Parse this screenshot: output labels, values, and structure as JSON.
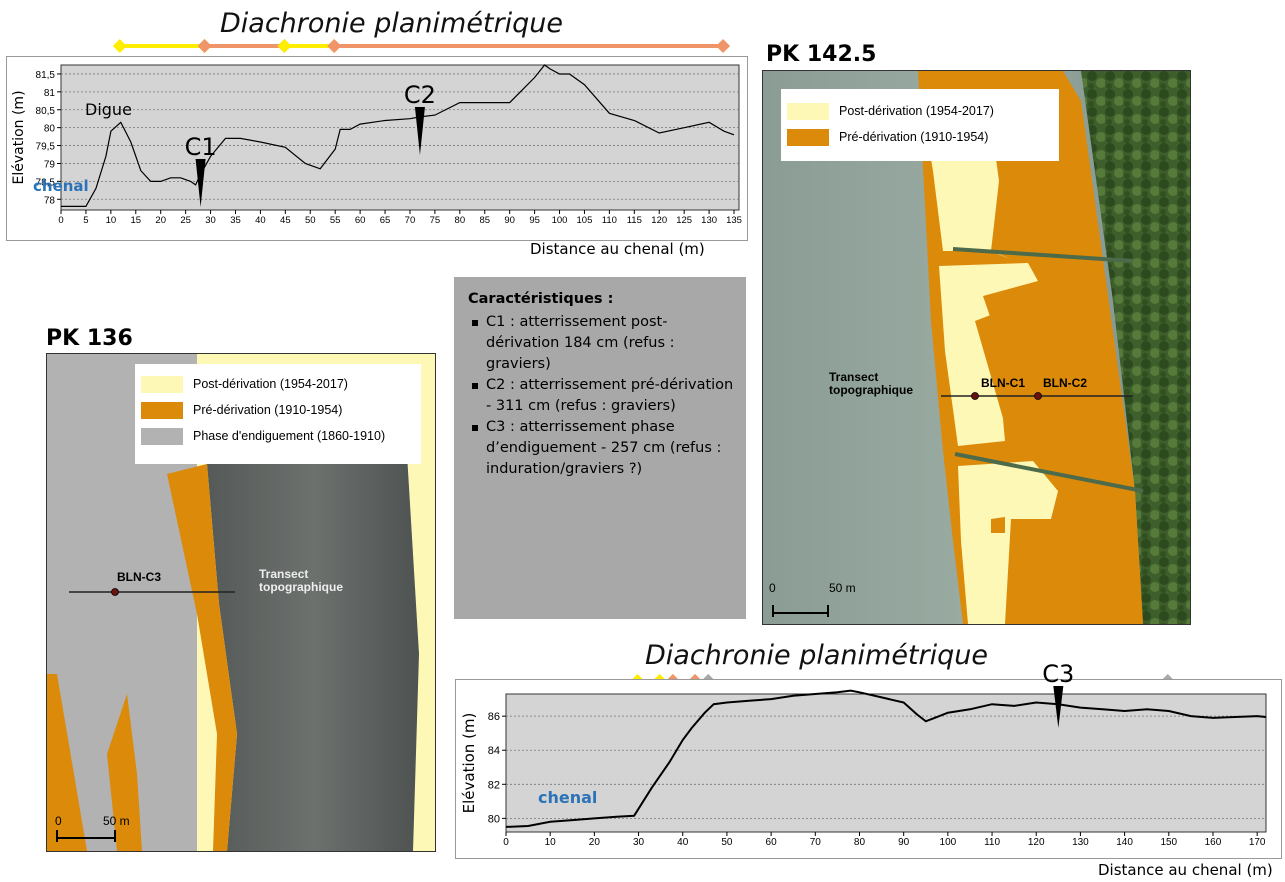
{
  "top_chart": {
    "title": "Diachronie planimétrique",
    "timeline": [
      {
        "from": 12,
        "to": 29,
        "color": "#ffee00"
      },
      {
        "from": 29,
        "to": 45,
        "color": "#f0956a"
      },
      {
        "from": 45,
        "to": 55,
        "color": "#ffee00"
      },
      {
        "from": 55,
        "to": 133,
        "color": "#f0956a"
      }
    ],
    "markers": [
      {
        "label": "C1",
        "x": 28
      },
      {
        "label": "C2",
        "x": 72
      }
    ],
    "annotations": {
      "digue": "Digue",
      "chenal": "chenal"
    },
    "xtitle": "Distance au chenal (m)",
    "ytitle": "Elévation (m)"
  },
  "bottom_chart": {
    "title": "Diachronie planimétrique",
    "timeline": [
      {
        "from": 30,
        "to": 35,
        "color": "#ffee00"
      },
      {
        "from": 35,
        "to": 38,
        "color": "#ffee00"
      },
      {
        "from": 38,
        "to": 43,
        "color": "#f0956a"
      },
      {
        "from": 43,
        "to": 46,
        "color": "#f0956a"
      },
      {
        "from": 46,
        "to": 150,
        "color": "#a9a9a9"
      }
    ],
    "markers": [
      {
        "label": "C3",
        "x": 125
      }
    ],
    "annotations": {
      "chenal": "chenal"
    },
    "xtitle": "Distance au chenal (m)",
    "ytitle": "Elévation (m)"
  },
  "chart_data": [
    {
      "type": "line",
      "xlim": [
        0,
        136
      ],
      "ylim": [
        77.7,
        81.75
      ],
      "xticks": [
        0,
        5,
        10,
        15,
        20,
        25,
        30,
        35,
        40,
        45,
        50,
        55,
        60,
        65,
        70,
        75,
        80,
        85,
        90,
        95,
        100,
        105,
        110,
        115,
        120,
        125,
        130,
        135
      ],
      "yticks": [
        {
          "v": 78,
          "label": "78"
        },
        {
          "v": 78.5,
          "label": "78,5"
        },
        {
          "v": 79,
          "label": "79"
        },
        {
          "v": 79.5,
          "label": "79,5"
        },
        {
          "v": 80,
          "label": "80"
        },
        {
          "v": 80.5,
          "label": "80,5"
        },
        {
          "v": 81,
          "label": "81"
        },
        {
          "v": 81.5,
          "label": "81,5"
        }
      ],
      "xlabel": "Distance au chenal (m)",
      "ylabel": "Elévation (m)",
      "grid": "horizontal dashed",
      "x": [
        0,
        5,
        7,
        9,
        10,
        12,
        14,
        16,
        18,
        20,
        22,
        24,
        26,
        27,
        28,
        30,
        33,
        36,
        40,
        45,
        49,
        52,
        55,
        56,
        58,
        60,
        65,
        70,
        72,
        75,
        80,
        85,
        90,
        95,
        97,
        98,
        100,
        102,
        105,
        110,
        115,
        120,
        125,
        130,
        133,
        135
      ],
      "y": [
        77.8,
        77.8,
        78.3,
        79.2,
        79.9,
        80.15,
        79.6,
        78.8,
        78.5,
        78.5,
        78.6,
        78.6,
        78.5,
        78.4,
        78.7,
        79.2,
        79.7,
        79.7,
        79.6,
        79.45,
        79.0,
        78.85,
        79.4,
        79.95,
        79.95,
        80.1,
        80.2,
        80.25,
        80.3,
        80.35,
        80.7,
        80.7,
        80.7,
        81.4,
        81.75,
        81.65,
        81.5,
        81.5,
        81.2,
        80.4,
        80.2,
        79.85,
        80.0,
        80.15,
        79.9,
        79.8
      ]
    },
    {
      "type": "line",
      "xlim": [
        0,
        172
      ],
      "ylim": [
        79.2,
        87.3
      ],
      "xticks": [
        0,
        10,
        20,
        30,
        40,
        50,
        60,
        70,
        80,
        90,
        100,
        110,
        120,
        130,
        140,
        150,
        160,
        170
      ],
      "yticks": [
        {
          "v": 80,
          "label": "80"
        },
        {
          "v": 82,
          "label": "82"
        },
        {
          "v": 84,
          "label": "84"
        },
        {
          "v": 86,
          "label": "86"
        }
      ],
      "xlabel": "Distance au chenal (m)",
      "ylabel": "Elévation (m)",
      "grid": "horizontal dashed",
      "x": [
        0,
        5,
        10,
        15,
        20,
        25,
        29,
        33,
        37,
        40,
        42,
        45,
        47,
        50,
        55,
        60,
        65,
        70,
        75,
        78,
        80,
        85,
        90,
        93,
        95,
        97,
        100,
        105,
        110,
        115,
        120,
        125,
        130,
        135,
        140,
        145,
        150,
        155,
        160,
        165,
        170,
        172
      ],
      "y": [
        79.5,
        79.55,
        79.8,
        79.9,
        80.0,
        80.1,
        80.15,
        81.8,
        83.3,
        84.6,
        85.3,
        86.2,
        86.7,
        86.8,
        86.9,
        87.0,
        87.2,
        87.3,
        87.4,
        87.5,
        87.4,
        87.1,
        86.8,
        86.1,
        85.7,
        85.9,
        86.2,
        86.4,
        86.7,
        86.6,
        86.8,
        86.7,
        86.5,
        86.4,
        86.3,
        86.4,
        86.3,
        86.0,
        85.9,
        85.95,
        86.0,
        85.95
      ]
    }
  ],
  "map_pk1425": {
    "title": "PK 142.5",
    "legend": [
      {
        "label": "Post-dérivation (1954-2017)",
        "color": "#fef8b6"
      },
      {
        "label": "Pré-dérivation (1910-1954)",
        "color": "#dc8a0a"
      }
    ],
    "transect_label": "Transect\ntopographique",
    "points": [
      {
        "label": "BLN-C1"
      },
      {
        "label": "BLN-C2"
      }
    ],
    "scale": {
      "zero": "0",
      "distance": "50 m"
    }
  },
  "map_pk136": {
    "title": "PK 136",
    "legend": [
      {
        "label": "Post-dérivation (1954-2017)",
        "color": "#fef8b6"
      },
      {
        "label": "Pré-dérivation (1910-1954)",
        "color": "#dc8a0a"
      },
      {
        "label": "Phase d'endiguement (1860-1910)",
        "color": "#b2b2b2"
      }
    ],
    "transect_label": "Transect\ntopographique",
    "points": [
      {
        "label": "BLN-C3"
      }
    ],
    "scale": {
      "zero": "0",
      "distance": "50 m"
    }
  },
  "characteristics": {
    "title": "Caractéristiques :",
    "items": [
      "C1 : atterrissement post-dérivation    184 cm (refus : graviers)",
      "C2 : atterrissement  pré-dérivation - 311 cm (refus : graviers)",
      "C3 : atterrissement phase d’endiguement - 257 cm (refus : induration/graviers ?)"
    ]
  }
}
